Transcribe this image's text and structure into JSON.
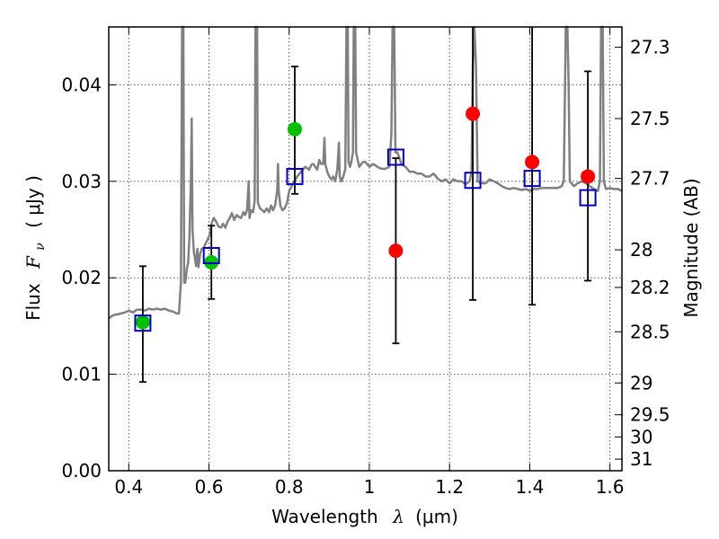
{
  "chart_data": {
    "type": "scatter",
    "xlabel_main": "Wavelength",
    "xlabel_symbol": "λ",
    "xlabel_unit": "(μm)",
    "ylabel_main": "Flux",
    "ylabel_symbol": "F",
    "ylabel_subscript": "ν",
    "ylabel_unit": "( μJy )",
    "y2label": "Magnitude (AB)",
    "xlim": [
      0.35,
      1.63
    ],
    "ylim": [
      0.0,
      0.046
    ],
    "grid": true,
    "x_ticks": [
      0.4,
      0.6,
      0.8,
      1.0,
      1.2,
      1.4,
      1.6
    ],
    "x_tick_labels": [
      "0.4",
      "0.6",
      "0.8",
      "1",
      "1.2",
      "1.4",
      "1.6"
    ],
    "y_ticks": [
      0.0,
      0.01,
      0.02,
      0.03,
      0.04
    ],
    "y_tick_labels": [
      "0.00",
      "0.01",
      "0.02",
      "0.03",
      "0.04"
    ],
    "y2_ticks": [
      {
        "flux": 0.0439,
        "label": "27.3"
      },
      {
        "flux": 0.0365,
        "label": "27.5"
      },
      {
        "flux": 0.0303,
        "label": "27.7"
      },
      {
        "flux": 0.0229,
        "label": "28"
      },
      {
        "flux": 0.019,
        "label": "28.2"
      },
      {
        "flux": 0.0144,
        "label": "28.5"
      },
      {
        "flux": 0.0091,
        "label": "29"
      },
      {
        "flux": 0.0058,
        "label": "29.5"
      },
      {
        "flux": 0.0035,
        "label": "30"
      },
      {
        "flux": 0.0012,
        "label": "31"
      }
    ],
    "series": [
      {
        "name": "model spectrum",
        "kind": "line",
        "color": "#808080",
        "points": [
          [
            0.35,
            0.0158
          ],
          [
            0.36,
            0.0161
          ],
          [
            0.37,
            0.0162
          ],
          [
            0.38,
            0.0163
          ],
          [
            0.39,
            0.0164
          ],
          [
            0.4,
            0.0166
          ],
          [
            0.41,
            0.0164
          ],
          [
            0.42,
            0.0167
          ],
          [
            0.43,
            0.0167
          ],
          [
            0.44,
            0.0166
          ],
          [
            0.45,
            0.0168
          ],
          [
            0.46,
            0.0167
          ],
          [
            0.47,
            0.0168
          ],
          [
            0.48,
            0.0167
          ],
          [
            0.49,
            0.0168
          ],
          [
            0.5,
            0.0166
          ],
          [
            0.51,
            0.0165
          ],
          [
            0.52,
            0.0163
          ],
          [
            0.525,
            0.0163
          ],
          [
            0.53,
            0.0195
          ],
          [
            0.533,
            0.046
          ],
          [
            0.536,
            0.046
          ],
          [
            0.538,
            0.0195
          ],
          [
            0.541,
            0.0195
          ],
          [
            0.545,
            0.021
          ],
          [
            0.548,
            0.0215
          ],
          [
            0.551,
            0.024
          ],
          [
            0.555,
            0.03
          ],
          [
            0.557,
            0.0365
          ],
          [
            0.559,
            0.025
          ],
          [
            0.562,
            0.0228
          ],
          [
            0.565,
            0.022
          ],
          [
            0.568,
            0.0212
          ],
          [
            0.571,
            0.023
          ],
          [
            0.574,
            0.0211
          ],
          [
            0.578,
            0.0225
          ],
          [
            0.582,
            0.023
          ],
          [
            0.587,
            0.0231
          ],
          [
            0.592,
            0.0236
          ],
          [
            0.597,
            0.024
          ],
          [
            0.602,
            0.0245
          ],
          [
            0.607,
            0.0257
          ],
          [
            0.612,
            0.0262
          ],
          [
            0.618,
            0.0258
          ],
          [
            0.624,
            0.0253
          ],
          [
            0.63,
            0.0252
          ],
          [
            0.635,
            0.0256
          ],
          [
            0.641,
            0.0252
          ],
          [
            0.646,
            0.0258
          ],
          [
            0.652,
            0.0262
          ],
          [
            0.657,
            0.0267
          ],
          [
            0.663,
            0.026
          ],
          [
            0.669,
            0.0265
          ],
          [
            0.675,
            0.0263
          ],
          [
            0.68,
            0.0262
          ],
          [
            0.686,
            0.0268
          ],
          [
            0.69,
            0.0265
          ],
          [
            0.695,
            0.027
          ],
          [
            0.699,
            0.03
          ],
          [
            0.701,
            0.0262
          ],
          [
            0.705,
            0.027
          ],
          [
            0.71,
            0.0268
          ],
          [
            0.714,
            0.028
          ],
          [
            0.716,
            0.046
          ],
          [
            0.72,
            0.046
          ],
          [
            0.722,
            0.0278
          ],
          [
            0.727,
            0.0272
          ],
          [
            0.733,
            0.027
          ],
          [
            0.738,
            0.0268
          ],
          [
            0.744,
            0.0272
          ],
          [
            0.75,
            0.0268
          ],
          [
            0.755,
            0.0275
          ],
          [
            0.76,
            0.027
          ],
          [
            0.765,
            0.0275
          ],
          [
            0.77,
            0.029
          ],
          [
            0.772,
            0.0318
          ],
          [
            0.774,
            0.029
          ],
          [
            0.778,
            0.0275
          ],
          [
            0.783,
            0.027
          ],
          [
            0.789,
            0.0272
          ],
          [
            0.795,
            0.0278
          ],
          [
            0.8,
            0.029
          ],
          [
            0.81,
            0.0298
          ],
          [
            0.82,
            0.0305
          ],
          [
            0.83,
            0.031
          ],
          [
            0.84,
            0.0315
          ],
          [
            0.85,
            0.0312
          ],
          [
            0.855,
            0.0317
          ],
          [
            0.86,
            0.0318
          ],
          [
            0.87,
            0.0312
          ],
          [
            0.875,
            0.0322
          ],
          [
            0.88,
            0.0318
          ],
          [
            0.885,
            0.0318
          ],
          [
            0.888,
            0.0345
          ],
          [
            0.89,
            0.0318
          ],
          [
            0.895,
            0.031
          ],
          [
            0.9,
            0.0305
          ],
          [
            0.905,
            0.0302
          ],
          [
            0.91,
            0.0305
          ],
          [
            0.915,
            0.03
          ],
          [
            0.92,
            0.0312
          ],
          [
            0.924,
            0.034
          ],
          [
            0.926,
            0.0305
          ],
          [
            0.93,
            0.03
          ],
          [
            0.935,
            0.0305
          ],
          [
            0.94,
            0.0313
          ],
          [
            0.943,
            0.046
          ],
          [
            0.946,
            0.046
          ],
          [
            0.948,
            0.032
          ],
          [
            0.952,
            0.0315
          ],
          [
            0.955,
            0.032
          ],
          [
            0.959,
            0.033
          ],
          [
            0.961,
            0.046
          ],
          [
            0.965,
            0.046
          ],
          [
            0.967,
            0.033
          ],
          [
            0.972,
            0.032
          ],
          [
            0.975,
            0.0315
          ],
          [
            0.98,
            0.0318
          ],
          [
            0.985,
            0.032
          ],
          [
            0.99,
            0.032
          ],
          [
            1.0,
            0.0315
          ],
          [
            1.01,
            0.0318
          ],
          [
            1.02,
            0.0315
          ],
          [
            1.03,
            0.0313
          ],
          [
            1.04,
            0.0313
          ],
          [
            1.05,
            0.0315
          ],
          [
            1.055,
            0.035
          ],
          [
            1.058,
            0.046
          ],
          [
            1.062,
            0.046
          ],
          [
            1.065,
            0.033
          ],
          [
            1.07,
            0.033
          ],
          [
            1.08,
            0.0318
          ],
          [
            1.09,
            0.0315
          ],
          [
            1.1,
            0.031
          ],
          [
            1.11,
            0.031
          ],
          [
            1.12,
            0.0308
          ],
          [
            1.13,
            0.0308
          ],
          [
            1.14,
            0.0305
          ],
          [
            1.15,
            0.0305
          ],
          [
            1.16,
            0.0308
          ],
          [
            1.17,
            0.0303
          ],
          [
            1.18,
            0.03
          ],
          [
            1.19,
            0.0302
          ],
          [
            1.2,
            0.0298
          ],
          [
            1.21,
            0.0302
          ],
          [
            1.22,
            0.03
          ],
          [
            1.23,
            0.03
          ],
          [
            1.24,
            0.0297
          ],
          [
            1.25,
            0.03
          ],
          [
            1.255,
            0.031
          ],
          [
            1.258,
            0.042
          ],
          [
            1.262,
            0.046
          ],
          [
            1.266,
            0.042
          ],
          [
            1.27,
            0.03
          ],
          [
            1.28,
            0.0298
          ],
          [
            1.29,
            0.0298
          ],
          [
            1.3,
            0.0302
          ],
          [
            1.31,
            0.03
          ],
          [
            1.32,
            0.0298
          ],
          [
            1.33,
            0.0295
          ],
          [
            1.34,
            0.0293
          ],
          [
            1.35,
            0.0292
          ],
          [
            1.36,
            0.0293
          ],
          [
            1.37,
            0.0292
          ],
          [
            1.38,
            0.0291
          ],
          [
            1.39,
            0.0292
          ],
          [
            1.4,
            0.029
          ],
          [
            1.41,
            0.0292
          ],
          [
            1.42,
            0.0292
          ],
          [
            1.43,
            0.0293
          ],
          [
            1.44,
            0.0293
          ],
          [
            1.45,
            0.0293
          ],
          [
            1.46,
            0.0293
          ],
          [
            1.47,
            0.0293
          ],
          [
            1.48,
            0.0295
          ],
          [
            1.485,
            0.03
          ],
          [
            1.488,
            0.04
          ],
          [
            1.49,
            0.046
          ],
          [
            1.494,
            0.046
          ],
          [
            1.497,
            0.04
          ],
          [
            1.5,
            0.03
          ],
          [
            1.51,
            0.0295
          ],
          [
            1.52,
            0.0298
          ],
          [
            1.53,
            0.03
          ],
          [
            1.54,
            0.0298
          ],
          [
            1.55,
            0.0295
          ],
          [
            1.56,
            0.0292
          ],
          [
            1.57,
            0.029
          ],
          [
            1.575,
            0.03
          ],
          [
            1.578,
            0.046
          ],
          [
            1.582,
            0.046
          ],
          [
            1.585,
            0.03
          ],
          [
            1.59,
            0.0292
          ],
          [
            1.6,
            0.0293
          ],
          [
            1.61,
            0.0292
          ],
          [
            1.62,
            0.0292
          ],
          [
            1.63,
            0.029
          ]
        ]
      },
      {
        "name": "observed photometry (green)",
        "kind": "marker",
        "marker": "circle",
        "color": "#00c000",
        "points": [
          {
            "x": 0.435,
            "y": 0.0154
          },
          {
            "x": 0.606,
            "y": 0.0216
          },
          {
            "x": 0.814,
            "y": 0.0354
          }
        ]
      },
      {
        "name": "observed photometry (red)",
        "kind": "marker",
        "marker": "circle",
        "color": "#ff0000",
        "points": [
          {
            "x": 1.066,
            "y": 0.0228
          },
          {
            "x": 1.258,
            "y": 0.037
          },
          {
            "x": 1.406,
            "y": 0.032
          },
          {
            "x": 1.545,
            "y": 0.0305
          }
        ]
      },
      {
        "name": "model photometry",
        "kind": "marker",
        "marker": "open-square",
        "color": "#0000cc",
        "points": [
          {
            "x": 0.435,
            "y": 0.0153
          },
          {
            "x": 0.606,
            "y": 0.0223
          },
          {
            "x": 0.814,
            "y": 0.0305
          },
          {
            "x": 1.066,
            "y": 0.0325
          },
          {
            "x": 1.258,
            "y": 0.0301
          },
          {
            "x": 1.406,
            "y": 0.0303
          },
          {
            "x": 1.545,
            "y": 0.0283
          }
        ]
      },
      {
        "name": "error bars",
        "kind": "errorbar",
        "color": "#000000",
        "points": [
          {
            "x": 0.435,
            "low": 0.0092,
            "high": 0.0212
          },
          {
            "x": 0.606,
            "low": 0.0178,
            "high": 0.0254
          },
          {
            "x": 0.814,
            "low": 0.0287,
            "high": 0.0419
          },
          {
            "x": 1.066,
            "low": 0.0132,
            "high": 0.0324
          },
          {
            "x": 1.258,
            "low": 0.0177,
            "high": 0.046
          },
          {
            "x": 1.406,
            "low": 0.0172,
            "high": 0.046
          },
          {
            "x": 1.545,
            "low": 0.0197,
            "high": 0.0414
          }
        ]
      }
    ]
  }
}
